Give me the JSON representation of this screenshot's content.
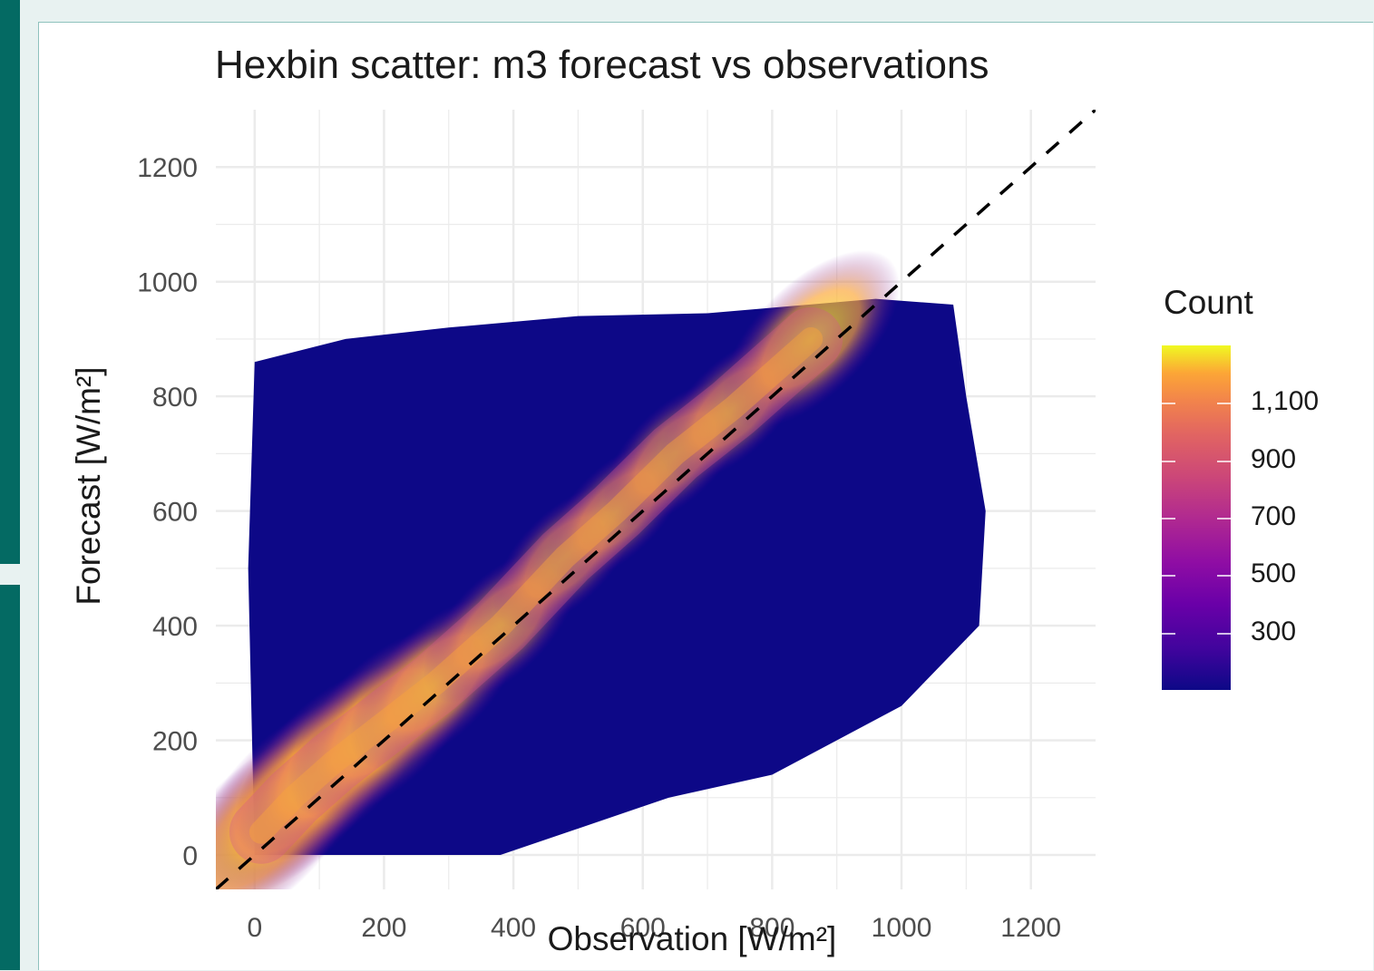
{
  "chart_data": {
    "type": "heatmap",
    "subtype": "hexbin",
    "title": "Hexbin scatter: m3 forecast vs observations",
    "xlabel": "Observation [W/m²]",
    "ylabel": "Forecast [W/m²]",
    "xlim": [
      -60,
      1300
    ],
    "ylim": [
      -60,
      1300
    ],
    "x_ticks": [
      0,
      200,
      400,
      600,
      800,
      1000,
      1200
    ],
    "y_ticks": [
      0,
      200,
      400,
      600,
      800,
      1000,
      1200
    ],
    "x_tick_labels": [
      "0",
      "200",
      "400",
      "600",
      "800",
      "1000",
      "1200"
    ],
    "y_tick_labels": [
      "0",
      "200",
      "400",
      "600",
      "800",
      "1000",
      "1200"
    ],
    "grid": true,
    "reference_line": {
      "style": "dashed",
      "color": "#000000",
      "slope": 1,
      "intercept": 0
    },
    "colorscale": "plasma",
    "legend": {
      "title": "Count",
      "placement": "right",
      "range": [
        100,
        1300
      ],
      "ticks": [
        300,
        500,
        700,
        900,
        1100
      ],
      "tick_labels": [
        "300",
        "500",
        "700",
        "900",
        "1,100"
      ]
    },
    "data_region_outline": [
      [
        0,
        0
      ],
      [
        380,
        0
      ],
      [
        640,
        100
      ],
      [
        800,
        140
      ],
      [
        1000,
        260
      ],
      [
        1120,
        400
      ],
      [
        1130,
        600
      ],
      [
        1100,
        800
      ],
      [
        1080,
        960
      ],
      [
        960,
        970
      ],
      [
        700,
        945
      ],
      [
        500,
        940
      ],
      [
        300,
        920
      ],
      [
        140,
        900
      ],
      [
        0,
        860
      ],
      [
        -10,
        500
      ]
    ],
    "density_ridge": [
      {
        "x": 10,
        "y": 40,
        "count": 1300
      },
      {
        "x": 60,
        "y": 100,
        "count": 1300
      },
      {
        "x": 120,
        "y": 160,
        "count": 1250
      },
      {
        "x": 200,
        "y": 230,
        "count": 1200
      },
      {
        "x": 280,
        "y": 300,
        "count": 1000
      },
      {
        "x": 380,
        "y": 400,
        "count": 800
      },
      {
        "x": 480,
        "y": 520,
        "count": 700
      },
      {
        "x": 560,
        "y": 600,
        "count": 650
      },
      {
        "x": 650,
        "y": 700,
        "count": 700
      },
      {
        "x": 740,
        "y": 780,
        "count": 700
      },
      {
        "x": 860,
        "y": 900,
        "count": 1050
      }
    ]
  },
  "colors": {
    "background": "#e8f2f1",
    "side_strip": "#046a63",
    "panel": "#ffffff",
    "grid": "#ebebeb",
    "low_count": "#0d0887",
    "high_count": "#f0f921"
  }
}
